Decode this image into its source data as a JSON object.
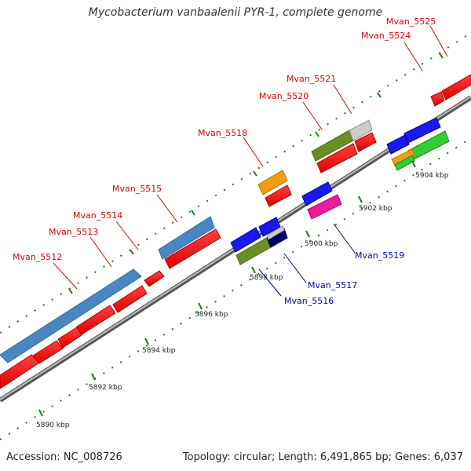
{
  "title": "Mycobacterium vanbaalenii PYR-1, complete genome",
  "footer": {
    "accession": "Accession: NC_008726",
    "summary": "Topology: circular; Length: 6,491,865 bp; Genes: 6,037"
  },
  "colors": {
    "forward_label": "#dd0000",
    "reverse_label": "#0000bb",
    "backbone": "#888888",
    "tick": "#1a7a1a"
  },
  "ticks": [
    "5890 kbp",
    "5892 kbp",
    "5894 kbp",
    "5896 kbp",
    "5898 kbp",
    "5900 kbp",
    "5902 kbp",
    "5904 kbp"
  ],
  "gene_labels": [
    {
      "id": "lbl-5512",
      "text": "Mvan_5512",
      "strand": "forward"
    },
    {
      "id": "lbl-5513",
      "text": "Mvan_5513",
      "strand": "forward"
    },
    {
      "id": "lbl-5514",
      "text": "Mvan_5514",
      "strand": "forward"
    },
    {
      "id": "lbl-5515",
      "text": "Mvan_5515",
      "strand": "forward"
    },
    {
      "id": "lbl-5518",
      "text": "Mvan_5518",
      "strand": "forward"
    },
    {
      "id": "lbl-5520",
      "text": "Mvan_5520",
      "strand": "forward"
    },
    {
      "id": "lbl-5521",
      "text": "Mvan_5521",
      "strand": "forward"
    },
    {
      "id": "lbl-5524",
      "text": "Mvan_5524",
      "strand": "forward"
    },
    {
      "id": "lbl-5525",
      "text": "Mvan_5525",
      "strand": "forward"
    },
    {
      "id": "lbl-5516",
      "text": "Mvan_5516",
      "strand": "reverse"
    },
    {
      "id": "lbl-5517",
      "text": "Mvan_5517",
      "strand": "reverse"
    },
    {
      "id": "lbl-5519",
      "text": "Mvan_5519",
      "strand": "reverse"
    }
  ]
}
